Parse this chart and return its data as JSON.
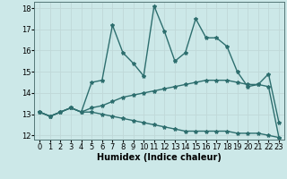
{
  "title": "",
  "xlabel": "Humidex (Indice chaleur)",
  "xlim": [
    -0.5,
    23.5
  ],
  "ylim": [
    11.8,
    18.3
  ],
  "yticks": [
    12,
    13,
    14,
    15,
    16,
    17,
    18
  ],
  "xticks": [
    0,
    1,
    2,
    3,
    4,
    5,
    6,
    7,
    8,
    9,
    10,
    11,
    12,
    13,
    14,
    15,
    16,
    17,
    18,
    19,
    20,
    21,
    22,
    23
  ],
  "bg_color": "#cce8e8",
  "grid_color": "#c0d8d8",
  "line_color": "#2d6e6e",
  "line1_x": [
    0,
    1,
    2,
    3,
    4,
    5,
    6,
    7,
    8,
    9,
    10,
    11,
    12,
    13,
    14,
    15,
    16,
    17,
    18,
    19,
    20,
    21,
    22,
    23
  ],
  "line1_y": [
    13.1,
    12.9,
    13.1,
    13.3,
    13.1,
    14.5,
    14.6,
    17.2,
    15.9,
    15.4,
    14.8,
    18.1,
    16.9,
    15.5,
    15.9,
    17.5,
    16.6,
    16.6,
    16.2,
    15.0,
    14.3,
    14.4,
    14.9,
    12.6
  ],
  "line2_x": [
    0,
    1,
    2,
    3,
    4,
    5,
    6,
    7,
    8,
    9,
    10,
    11,
    12,
    13,
    14,
    15,
    16,
    17,
    18,
    19,
    20,
    21,
    22,
    23
  ],
  "line2_y": [
    13.1,
    12.9,
    13.1,
    13.3,
    13.1,
    13.3,
    13.4,
    13.6,
    13.8,
    13.9,
    14.0,
    14.1,
    14.2,
    14.3,
    14.4,
    14.5,
    14.6,
    14.6,
    14.6,
    14.5,
    14.4,
    14.4,
    14.3,
    11.9
  ],
  "line3_x": [
    0,
    1,
    2,
    3,
    4,
    5,
    6,
    7,
    8,
    9,
    10,
    11,
    12,
    13,
    14,
    15,
    16,
    17,
    18,
    19,
    20,
    21,
    22,
    23
  ],
  "line3_y": [
    13.1,
    12.9,
    13.1,
    13.3,
    13.1,
    13.1,
    13.0,
    12.9,
    12.8,
    12.7,
    12.6,
    12.5,
    12.4,
    12.3,
    12.2,
    12.2,
    12.2,
    12.2,
    12.2,
    12.1,
    12.1,
    12.1,
    12.0,
    11.9
  ],
  "marker": "*",
  "markersize": 3,
  "linewidth": 1.0,
  "axis_fontsize": 7,
  "tick_fontsize": 6
}
